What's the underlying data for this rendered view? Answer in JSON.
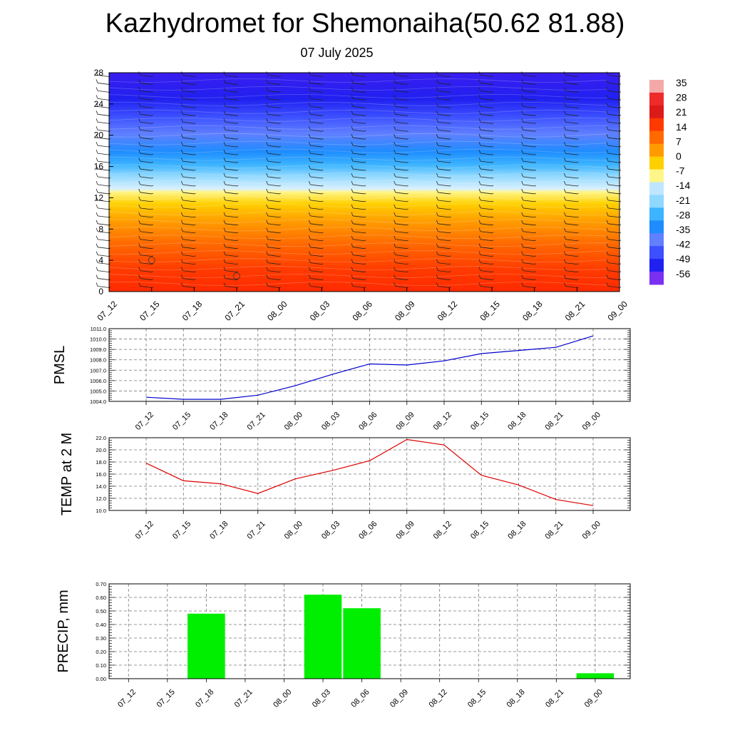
{
  "title": "Kazhydromet for Shemonaiha(50.62 81.88)",
  "subtitle": "07 July 2025",
  "colorbar": {
    "labels": [
      "35",
      "28",
      "21",
      "14",
      "7",
      "0",
      "-7",
      "-14",
      "-21",
      "-28",
      "-35",
      "-42",
      "-49",
      "-56"
    ]
  },
  "chart_data": [
    {
      "type": "heatmap",
      "name": "vertical-profile",
      "x_tick_labels": [
        "07_12",
        "07_15",
        "07_18",
        "07_21",
        "08_00",
        "08_03",
        "08_06",
        "08_09",
        "08_12",
        "08_15",
        "08_18",
        "08_21",
        "09_00"
      ],
      "y_tick_labels": [
        "0",
        "4",
        "8",
        "12",
        "16",
        "20",
        "24",
        "28"
      ],
      "ylim": [
        0,
        28
      ],
      "note_colorscale": "temperature from about 28 near surface to about -56 aloft, with wind barbs"
    },
    {
      "type": "line",
      "ylabel": "PMSL",
      "color": "#0000cc",
      "x": [
        "07_12",
        "07_15",
        "07_18",
        "07_21",
        "08_00",
        "08_03",
        "08_06",
        "08_09",
        "08_12",
        "08_15",
        "08_18",
        "08_21",
        "09_00"
      ],
      "values": [
        1004.4,
        1004.2,
        1004.2,
        1004.6,
        1005.5,
        1006.6,
        1007.6,
        1007.5,
        1007.9,
        1008.6,
        1008.9,
        1009.2,
        1010.3
      ],
      "ylim": [
        1004.0,
        1011.0
      ],
      "y_tick_labels": [
        "1004.0",
        "1005.0",
        "1006.0",
        "1007.0",
        "1008.0",
        "1009.0",
        "1010.0",
        "1011.0"
      ]
    },
    {
      "type": "line",
      "ylabel": "TEMP at 2 M",
      "color": "#dd0000",
      "x": [
        "07_12",
        "07_15",
        "07_18",
        "07_21",
        "08_00",
        "08_03",
        "08_06",
        "08_09",
        "08_12",
        "08_15",
        "08_18",
        "08_21",
        "09_00"
      ],
      "values": [
        17.8,
        14.9,
        14.4,
        12.8,
        15.2,
        16.6,
        18.2,
        21.7,
        20.8,
        15.8,
        14.2,
        11.8,
        10.8
      ],
      "ylim": [
        10.0,
        22.0
      ],
      "y_tick_labels": [
        "10.0",
        "12.0",
        "14.0",
        "16.0",
        "18.0",
        "20.0",
        "22.0"
      ]
    },
    {
      "type": "bar",
      "ylabel": "PRECIP, mm",
      "color": "#00ee00",
      "categories": [
        "07_12",
        "07_15",
        "07_18",
        "07_21",
        "08_00",
        "08_03",
        "08_06",
        "08_09",
        "08_12",
        "08_15",
        "08_18",
        "08_21",
        "09_00"
      ],
      "values": [
        0,
        0,
        0.48,
        0,
        0,
        0.62,
        0.52,
        0,
        0,
        0,
        0,
        0,
        0.04
      ],
      "ylim": [
        0,
        0.7
      ],
      "y_tick_labels": [
        "0.00",
        "0.10",
        "0.20",
        "0.30",
        "0.40",
        "0.50",
        "0.60",
        "0.70"
      ]
    }
  ]
}
